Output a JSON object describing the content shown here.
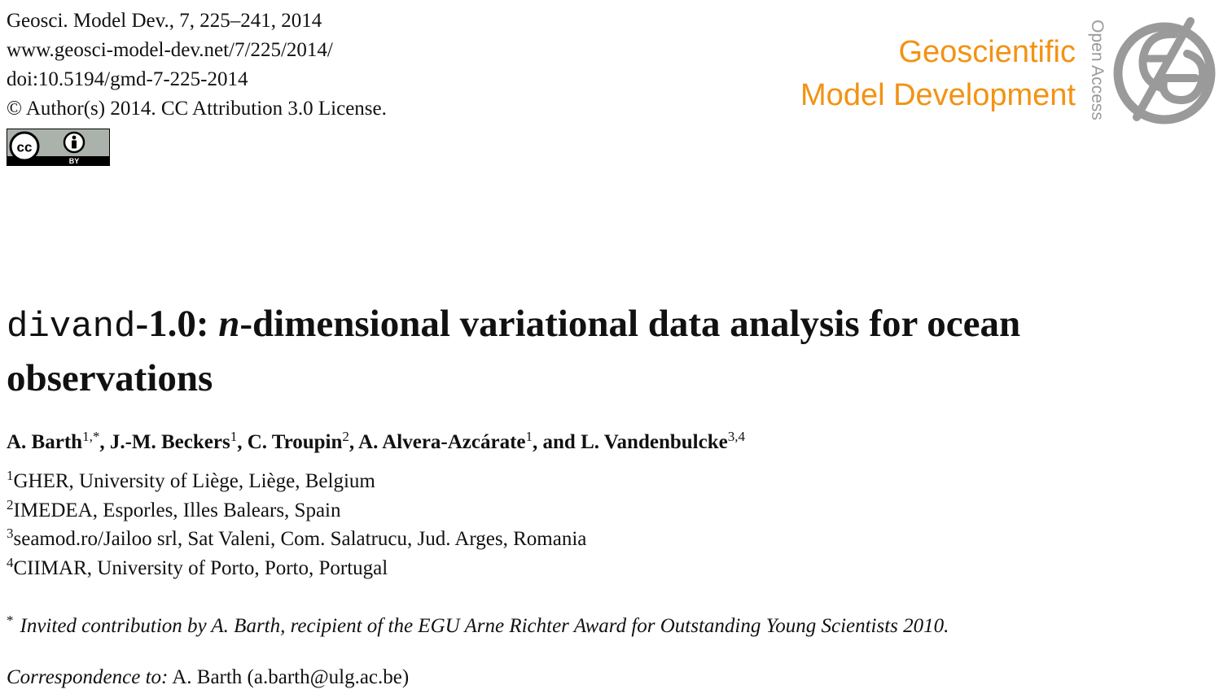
{
  "header": {
    "citation": "Geosci. Model Dev., 7, 225–241, 2014",
    "url": "www.geosci-model-dev.net/7/225/2014/",
    "doi": "doi:10.5194/gmd-7-225-2014",
    "license": "© Author(s) 2014. CC Attribution 3.0 License."
  },
  "badge": {
    "cc": "cc",
    "by": "BY",
    "icon": "cc-by-badge-icon"
  },
  "journal": {
    "line1": "Geoscientific",
    "line2": "Model Development",
    "open_access": "Open Access",
    "color": "#f39212",
    "logo_icon": "egu-globe-icon"
  },
  "title": {
    "code": "divand",
    "version": "-1.0: ",
    "italic": "n",
    "rest": "-dimensional variational data analysis for ocean observations"
  },
  "authors": [
    {
      "name": "A. Barth",
      "sup": "1,*",
      "sep": ", "
    },
    {
      "name": "J.-M. Beckers",
      "sup": "1",
      "sep": ", "
    },
    {
      "name": "C. Troupin",
      "sup": "2",
      "sep": ", "
    },
    {
      "name": "A. Alvera-Azcárate",
      "sup": "1",
      "sep": ", and "
    },
    {
      "name": "L. Vandenbulcke",
      "sup": "3,4",
      "sep": ""
    }
  ],
  "affiliations": [
    {
      "num": "1",
      "text": "GHER, University of Liège, Liège, Belgium"
    },
    {
      "num": "2",
      "text": "IMEDEA, Esporles, Illes Balears, Spain"
    },
    {
      "num": "3",
      "text": "seamod.ro/Jailoo srl, Sat Valeni, Com. Salatrucu, Jud. Arges, Romania"
    },
    {
      "num": "4",
      "text": "CIIMAR, University of Porto, Porto, Portugal"
    }
  ],
  "footnote": {
    "mark": "*",
    "text": "Invited contribution by A. Barth, recipient of the EGU Arne Richter Award for Outstanding Young Scientists 2010."
  },
  "correspondence": {
    "label": "Correspondence to:",
    "text": " A. Barth (a.barth@ulg.ac.be)"
  }
}
